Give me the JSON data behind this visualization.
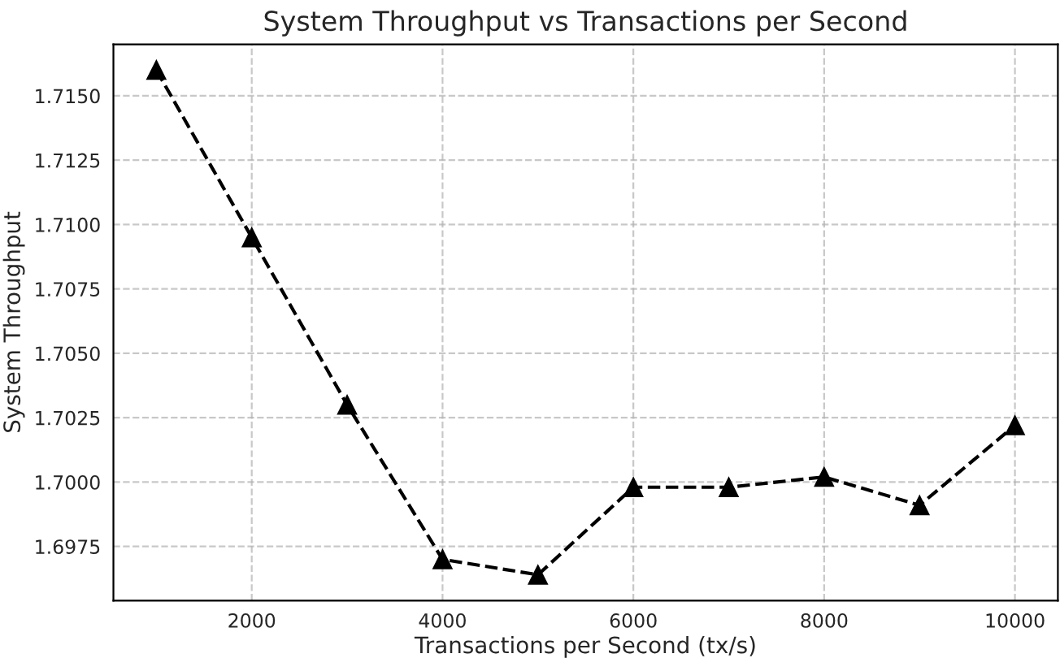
{
  "chart_data": {
    "type": "line",
    "title": "System Throughput vs Transactions per Second",
    "xlabel": "Transactions per Second (tx/s)",
    "ylabel": "System Throughput",
    "x": [
      1000,
      2000,
      3000,
      4000,
      5000,
      6000,
      7000,
      8000,
      9000,
      10000
    ],
    "series": [
      {
        "color": "#000000",
        "values": [
          1.716,
          1.7095,
          1.703,
          1.697,
          1.6964,
          1.6998,
          1.6998,
          1.7002,
          1.6991,
          1.7022
        ]
      }
    ],
    "xlim": [
      550,
      10450
    ],
    "xticks": [
      2000,
      4000,
      6000,
      8000,
      10000
    ],
    "ylim": [
      1.6954,
      1.717
    ],
    "yticks": [
      {
        "value": 1.6975,
        "label": "1.6975"
      },
      {
        "value": 1.7,
        "label": "1.7000"
      },
      {
        "value": 1.7025,
        "label": "1.7025"
      },
      {
        "value": 1.705,
        "label": "1.7050"
      },
      {
        "value": 1.7075,
        "label": "1.7075"
      },
      {
        "value": 1.71,
        "label": "1.7100"
      },
      {
        "value": 1.7125,
        "label": "1.7125"
      },
      {
        "value": 1.715,
        "label": "1.7150"
      }
    ],
    "grid": true,
    "marker": "triangle",
    "line_style": "dashed"
  }
}
